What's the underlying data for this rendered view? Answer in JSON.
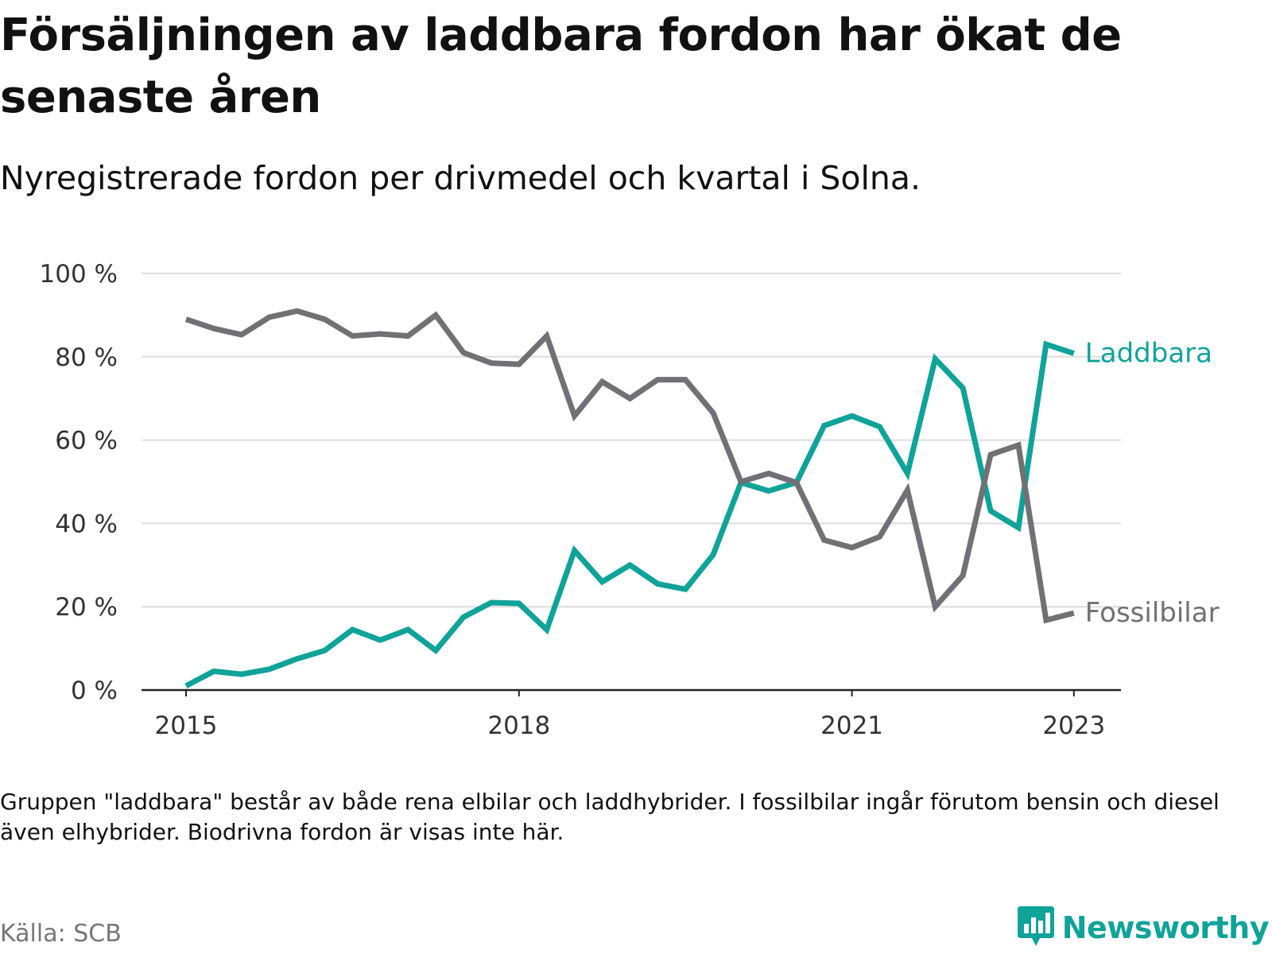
{
  "title": "Försäljningen av laddbara fordon har ökat de senaste åren",
  "subtitle": "Nyregistrerade fordon per drivmedel och kvartal i Solna.",
  "note": "Gruppen \"laddbara\" består av både rena elbilar och laddhybrider. I fossilbilar ingår förutom bensin och diesel även elhybrider. Biodrivna fordon är visas inte här.",
  "source": "Källa: SCB",
  "brand": {
    "name": "Newsworthy",
    "color": "#0fa399",
    "icon": "bar-chart-speech-bubble-icon"
  },
  "chart_data": {
    "type": "line",
    "title": "Försäljningen av laddbara fordon har ökat de senaste åren",
    "xlabel": "",
    "ylabel": "",
    "x": [
      "2015 Q1",
      "2015 Q2",
      "2015 Q3",
      "2015 Q4",
      "2016 Q1",
      "2016 Q2",
      "2016 Q3",
      "2016 Q4",
      "2017 Q1",
      "2017 Q2",
      "2017 Q3",
      "2017 Q4",
      "2018 Q1",
      "2018 Q2",
      "2018 Q3",
      "2018 Q4",
      "2019 Q1",
      "2019 Q2",
      "2019 Q3",
      "2019 Q4",
      "2020 Q1",
      "2020 Q2",
      "2020 Q3",
      "2020 Q4",
      "2021 Q1",
      "2021 Q2",
      "2021 Q3",
      "2021 Q4",
      "2022 Q1",
      "2022 Q2",
      "2022 Q3",
      "2022 Q4",
      "2023 Q1"
    ],
    "x_ticks": [
      {
        "index": 0,
        "label": "2015"
      },
      {
        "index": 12,
        "label": "2018"
      },
      {
        "index": 24,
        "label": "2021"
      },
      {
        "index": 32,
        "label": "2023"
      }
    ],
    "y_ticks": [
      {
        "value": 0,
        "label": "0 %"
      },
      {
        "value": 20,
        "label": "20 %"
      },
      {
        "value": 40,
        "label": "40 %"
      },
      {
        "value": 60,
        "label": "60 %"
      },
      {
        "value": 80,
        "label": "80 %"
      },
      {
        "value": 100,
        "label": "100 %"
      }
    ],
    "ylim": [
      0,
      100
    ],
    "grid": true,
    "legend": "line-end labels",
    "series": [
      {
        "name": "Laddbara",
        "color": "#0fa399",
        "values": [
          1,
          4.5,
          3.8,
          5,
          7.5,
          9.5,
          14.5,
          12,
          14.5,
          9.5,
          17.5,
          21,
          20.8,
          14.5,
          33.5,
          26,
          30,
          25.5,
          24.2,
          32.5,
          49.8,
          47.8,
          49.8,
          63.5,
          65.8,
          63.2,
          52,
          79.5,
          72.5,
          43,
          39,
          83,
          80.8
        ]
      },
      {
        "name": "Fossilbilar",
        "color": "#707075",
        "values": [
          89,
          86.8,
          85.3,
          89.5,
          91,
          89,
          85,
          85.5,
          85,
          90,
          81,
          78.5,
          78.2,
          85,
          65.8,
          74,
          70,
          74.5,
          74.5,
          66.5,
          50,
          52,
          49.8,
          36,
          34.2,
          36.8,
          48,
          20,
          27.5,
          56.5,
          58.8,
          16.8,
          18.5
        ]
      }
    ]
  }
}
